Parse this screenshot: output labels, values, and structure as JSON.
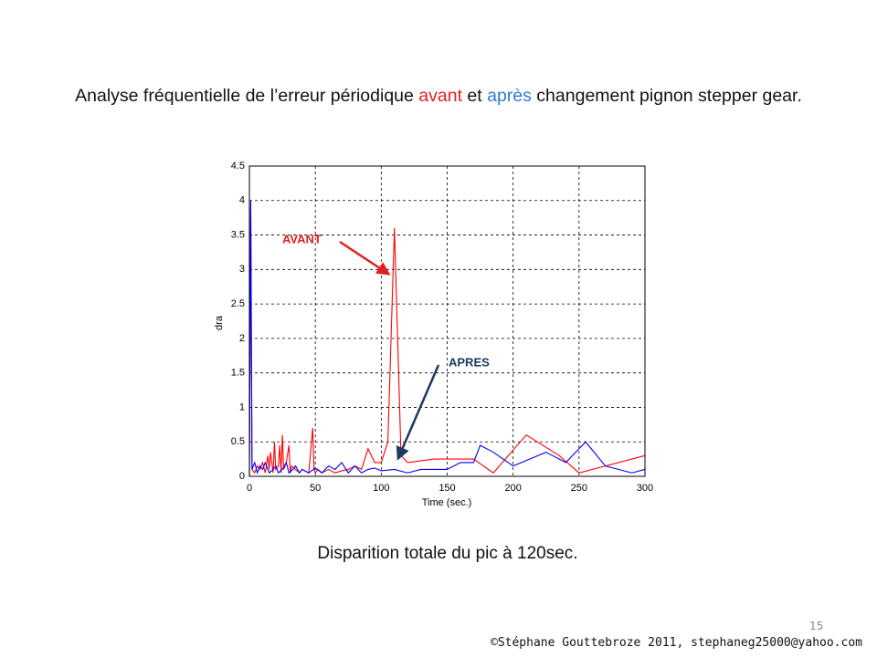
{
  "slide": {
    "title_parts": [
      "Analyse fréquentielle de l’erreur périodique ",
      "avant",
      " et ",
      "après",
      " changement pignon stepper gear."
    ],
    "subtitle": "Disparition totale du pic à 120sec.",
    "page_number": "15",
    "footer": "©Stéphane Gouttebroze 2011, stephaneg25000@yahoo.com"
  },
  "chart_data": {
    "type": "line",
    "xlabel": "Time (sec.)",
    "ylabel": "dra",
    "xlim": [
      0,
      300
    ],
    "ylim": [
      0,
      4.5
    ],
    "xticks": [
      0,
      50,
      100,
      150,
      200,
      250,
      300
    ],
    "yticks": [
      0,
      0.5,
      1,
      1.5,
      2,
      2.5,
      3,
      3.5,
      4,
      4.5
    ],
    "grid": true,
    "annotations": [
      "AVANT",
      "APRES"
    ],
    "series": [
      {
        "color": "#ff0000",
        "x": [
          0,
          1,
          2,
          4,
          6,
          8,
          10,
          12,
          14,
          15,
          16,
          18,
          19,
          20,
          22,
          23,
          24,
          25,
          26,
          28,
          30,
          31,
          32,
          35,
          38,
          40,
          42,
          45,
          48,
          49,
          50,
          52,
          55,
          60,
          65,
          70,
          75,
          80,
          85,
          90,
          95,
          100,
          105,
          110,
          115,
          120,
          140,
          160,
          170,
          185,
          210,
          235,
          250,
          300
        ],
        "values": [
          0,
          3.9,
          0.1,
          0.05,
          0.15,
          0.1,
          0.2,
          0.05,
          0.3,
          0.1,
          0.35,
          0.05,
          0.5,
          0.1,
          0.15,
          0.45,
          0.05,
          0.6,
          0.1,
          0.2,
          0.45,
          0.05,
          0.15,
          0.1,
          0.05,
          0.1,
          0.08,
          0.05,
          0.7,
          0.1,
          0.05,
          0.1,
          0.05,
          0.1,
          0.05,
          0.08,
          0.1,
          0.15,
          0.1,
          0.4,
          0.2,
          0.2,
          0.5,
          3.6,
          0.3,
          0.2,
          0.25,
          0.25,
          0.25,
          0.05,
          0.6,
          0.3,
          0.05,
          0.3
        ]
      },
      {
        "color": "#0000ff",
        "x": [
          0,
          1,
          2,
          4,
          6,
          8,
          10,
          12,
          15,
          18,
          20,
          22,
          25,
          28,
          30,
          33,
          35,
          38,
          40,
          45,
          50,
          55,
          60,
          65,
          70,
          75,
          80,
          85,
          90,
          95,
          100,
          110,
          120,
          130,
          140,
          150,
          160,
          170,
          175,
          185,
          200,
          225,
          240,
          255,
          270,
          290,
          300
        ],
        "values": [
          0,
          4.0,
          0.1,
          0.2,
          0.05,
          0.15,
          0.1,
          0.2,
          0.05,
          0.1,
          0.15,
          0.05,
          0.1,
          0.2,
          0.05,
          0.1,
          0.15,
          0.05,
          0.1,
          0.05,
          0.12,
          0.05,
          0.15,
          0.1,
          0.2,
          0.05,
          0.15,
          0.05,
          0.1,
          0.12,
          0.08,
          0.1,
          0.05,
          0.1,
          0.1,
          0.1,
          0.2,
          0.2,
          0.45,
          0.35,
          0.15,
          0.35,
          0.2,
          0.5,
          0.15,
          0.05,
          0.1
        ]
      }
    ]
  }
}
